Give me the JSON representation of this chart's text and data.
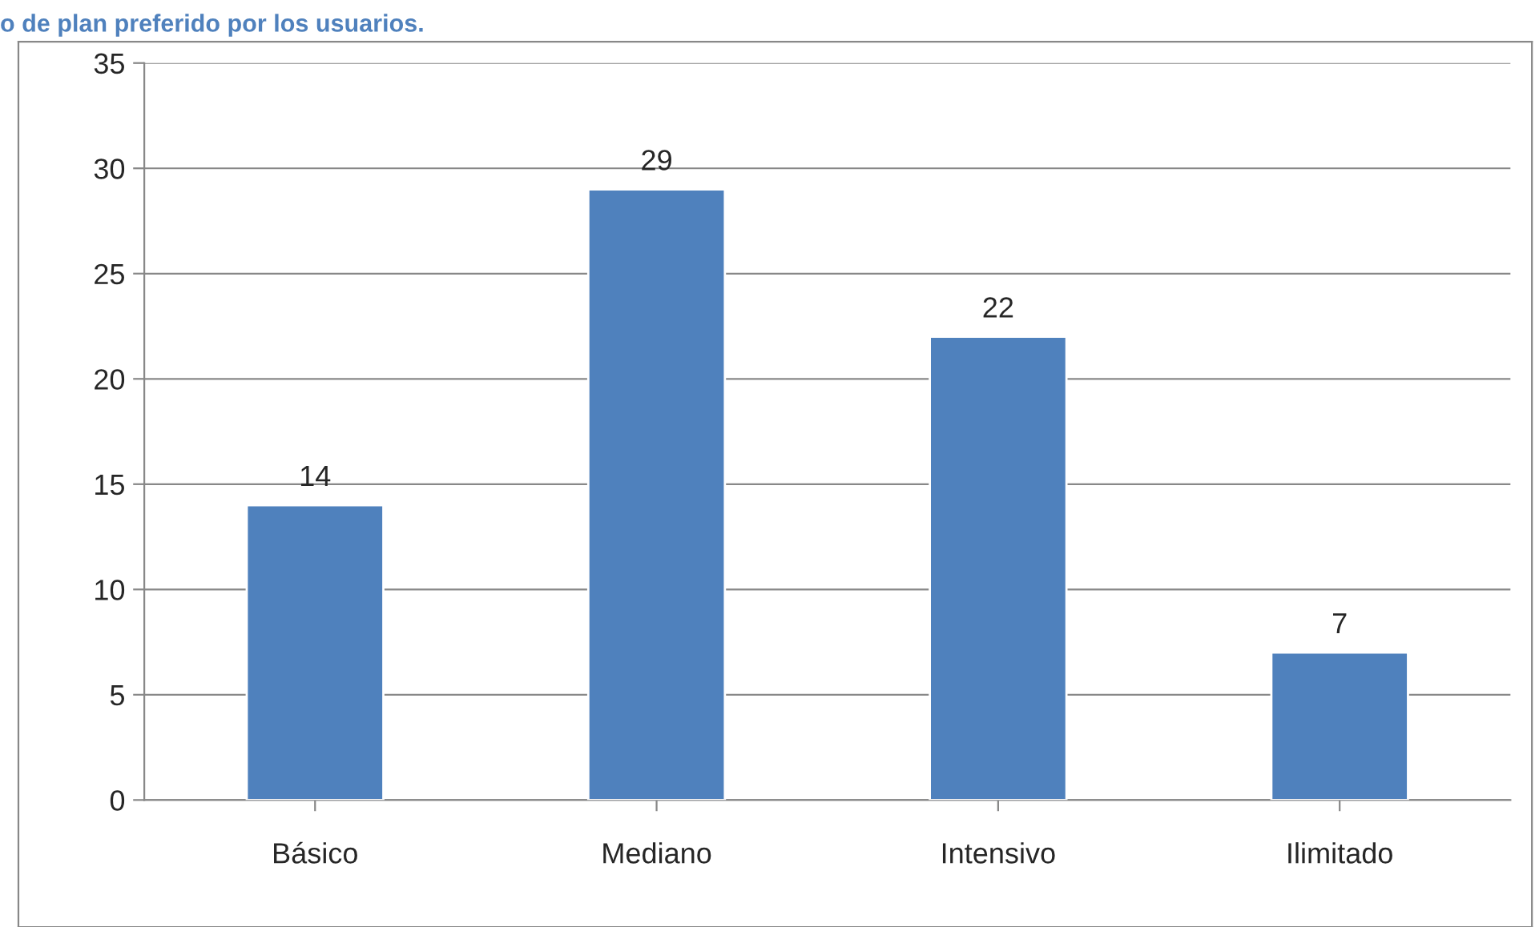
{
  "chart_data": {
    "type": "bar",
    "title": "o de plan preferido por los usuarios.",
    "categories": [
      "Básico",
      "Mediano",
      "Intensivo",
      "Ilimitado"
    ],
    "values": [
      14,
      29,
      22,
      7
    ],
    "color": "#4f81bd",
    "ylim": [
      0,
      35
    ],
    "yticks": [
      0,
      5,
      10,
      15,
      20,
      25,
      30,
      35
    ],
    "grid": "y",
    "data_labels": true
  }
}
